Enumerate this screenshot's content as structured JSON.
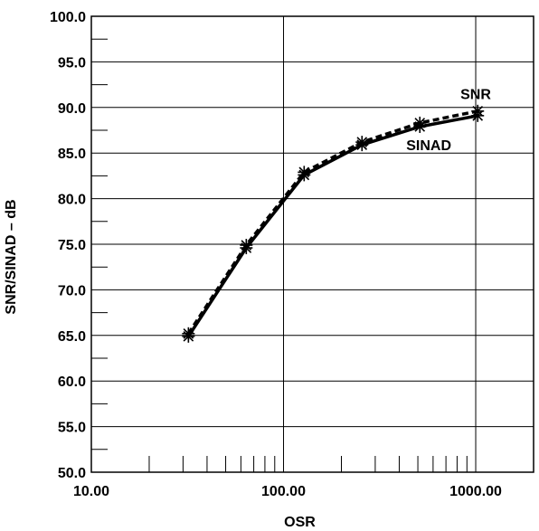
{
  "chart_data": {
    "type": "line",
    "xlabel": "OSR",
    "ylabel": "SNR/SINAD – dB",
    "x_scale": "log",
    "xlim": [
      10,
      2000
    ],
    "ylim": [
      50,
      100
    ],
    "grid": true,
    "x_tick_labels": [
      "10.00",
      "100.00",
      "1000.00"
    ],
    "y_tick_labels": [
      "50.0",
      "55.0",
      "60.0",
      "65.0",
      "70.0",
      "75.0",
      "80.0",
      "85.0",
      "90.0",
      "95.0",
      "100.0"
    ],
    "annotations": [
      {
        "text": "SNR",
        "x": 1000,
        "y": 90.9
      },
      {
        "text": "SINAD",
        "x": 570,
        "y": 85.3
      }
    ],
    "series": [
      {
        "name": "SNR",
        "style": "dashed",
        "x": [
          32,
          64,
          128,
          256,
          512,
          1024
        ],
        "y": [
          65.2,
          74.9,
          82.9,
          86.2,
          88.3,
          89.6
        ]
      },
      {
        "name": "SINAD",
        "style": "solid",
        "x": [
          32,
          64,
          128,
          256,
          512,
          1024
        ],
        "y": [
          64.9,
          74.6,
          82.6,
          85.9,
          87.9,
          89.1
        ]
      }
    ]
  }
}
